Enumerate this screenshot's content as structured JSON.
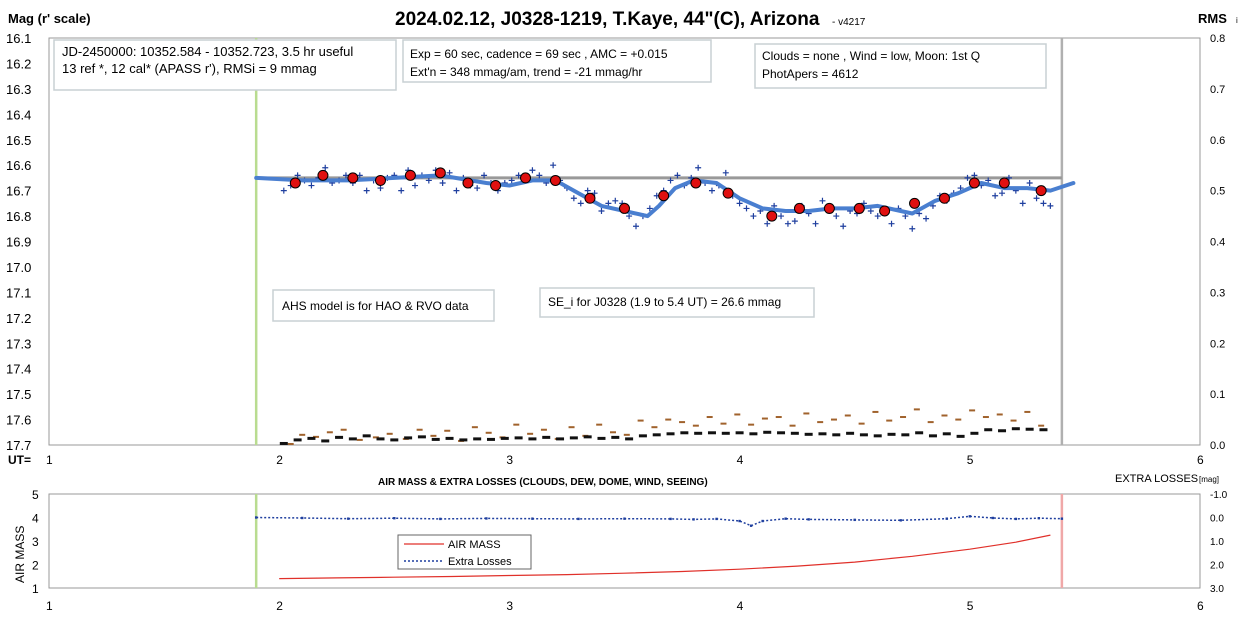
{
  "chart_data": [
    {
      "type": "scatter",
      "title": "2024.02.12, J0328-1219, T.Kaye, 44\"(C), Arizona",
      "version": "- v4217",
      "ylabel": "Mag (r' scale)",
      "y2label": "RMS",
      "y2label_sub": "i",
      "xlabel": "UT=",
      "xlim": [
        1,
        6
      ],
      "ylim": [
        16.1,
        17.7
      ],
      "y2lim": [
        0,
        0.8
      ],
      "x_ticks": [
        1,
        2,
        3,
        4,
        5,
        6
      ],
      "y_ticks": [
        "16.1",
        "16.2",
        "16.3",
        "16.4",
        "16.5",
        "16.6",
        "16.7",
        "16.8",
        "16.9",
        "17.0",
        "17.1",
        "17.2",
        "17.3",
        "17.4",
        "17.5",
        "17.6",
        "17.7"
      ],
      "y2_ticks": [
        "0.8",
        "0.7",
        "0.6",
        "0.5",
        "0.4",
        "0.3",
        "0.2",
        "0.1",
        "0.0"
      ],
      "annotations": {
        "box1": [
          "JD-2450000: 10352.584 - 10352.723, 3.5 hr useful",
          "13 ref *, 12 cal*  (APASS r'), RMSi = 9 mmag"
        ],
        "box2": [
          "Exp = 60 sec, cadence = 69 sec , AMC = +0.015",
          "Ext'n = 348 mmag/am, trend = -21 mmag/hr"
        ],
        "box3": [
          "Clouds = none , Wind = low,  Moon:  1st Q",
          "PhotApers = 4612"
        ],
        "box4": "AHS model is for HAO & RVO data",
        "box5": "SE_i for J0328 (1.9 to 5.4 UT) = 26.6 mmag"
      },
      "vertical_lines_ut": {
        "start": 1.9,
        "end": 5.4
      },
      "reference_line": {
        "x": [
          1.9,
          5.4
        ],
        "y": 16.65
      },
      "binned_points": {
        "x": [
          2.07,
          2.19,
          2.32,
          2.44,
          2.57,
          2.7,
          2.82,
          2.94,
          3.07,
          3.2,
          3.35,
          3.5,
          3.67,
          3.81,
          3.95,
          4.14,
          4.26,
          4.39,
          4.52,
          4.63,
          4.76,
          4.89,
          5.02,
          5.15,
          5.31
        ],
        "y": [
          16.67,
          16.64,
          16.65,
          16.66,
          16.64,
          16.63,
          16.67,
          16.68,
          16.65,
          16.66,
          16.73,
          16.77,
          16.72,
          16.67,
          16.71,
          16.8,
          16.77,
          16.77,
          16.77,
          16.78,
          16.75,
          16.73,
          16.67,
          16.67,
          16.7
        ]
      },
      "model_curve": {
        "x": [
          1.9,
          2.1,
          2.3,
          2.5,
          2.7,
          2.9,
          3.0,
          3.1,
          3.2,
          3.3,
          3.4,
          3.5,
          3.6,
          3.65,
          3.72,
          3.8,
          3.9,
          4.0,
          4.1,
          4.2,
          4.3,
          4.4,
          4.5,
          4.6,
          4.7,
          4.75,
          4.85,
          4.95,
          5.05,
          5.15,
          5.25,
          5.35,
          5.45
        ],
        "y": [
          16.65,
          16.66,
          16.66,
          16.65,
          16.64,
          16.67,
          16.68,
          16.66,
          16.66,
          16.71,
          16.76,
          16.78,
          16.8,
          16.76,
          16.69,
          16.66,
          16.67,
          16.73,
          16.77,
          16.78,
          16.78,
          16.77,
          16.77,
          16.76,
          16.78,
          16.79,
          16.74,
          16.71,
          16.67,
          16.69,
          16.69,
          16.7,
          16.67
        ]
      },
      "raw_points": {
        "x": [
          2.02,
          2.05,
          2.08,
          2.11,
          2.14,
          2.17,
          2.2,
          2.23,
          2.26,
          2.29,
          2.32,
          2.35,
          2.38,
          2.41,
          2.44,
          2.47,
          2.5,
          2.53,
          2.56,
          2.59,
          2.62,
          2.65,
          2.68,
          2.71,
          2.74,
          2.77,
          2.8,
          2.83,
          2.86,
          2.89,
          2.92,
          2.95,
          2.98,
          3.01,
          3.04,
          3.07,
          3.1,
          3.13,
          3.16,
          3.19,
          3.22,
          3.25,
          3.28,
          3.31,
          3.34,
          3.37,
          3.4,
          3.43,
          3.46,
          3.49,
          3.52,
          3.55,
          3.58,
          3.61,
          3.64,
          3.67,
          3.7,
          3.73,
          3.76,
          3.79,
          3.82,
          3.85,
          3.88,
          3.91,
          3.94,
          3.97,
          4.0,
          4.03,
          4.06,
          4.09,
          4.12,
          4.15,
          4.18,
          4.21,
          4.24,
          4.27,
          4.3,
          4.33,
          4.36,
          4.39,
          4.42,
          4.45,
          4.48,
          4.51,
          4.54,
          4.57,
          4.6,
          4.63,
          4.66,
          4.69,
          4.72,
          4.75,
          4.78,
          4.81,
          4.84,
          4.87,
          4.9,
          4.93,
          4.96,
          4.99,
          5.02,
          5.05,
          5.08,
          5.11,
          5.14,
          5.17,
          5.2,
          5.23,
          5.26,
          5.29,
          5.32,
          5.35
        ],
        "y": [
          16.7,
          16.68,
          16.64,
          16.66,
          16.68,
          16.65,
          16.61,
          16.67,
          16.66,
          16.64,
          16.67,
          16.64,
          16.7,
          16.66,
          16.69,
          16.65,
          16.64,
          16.7,
          16.62,
          16.68,
          16.64,
          16.66,
          16.62,
          16.67,
          16.63,
          16.7,
          16.65,
          16.68,
          16.69,
          16.64,
          16.67,
          16.7,
          16.67,
          16.66,
          16.64,
          16.66,
          16.62,
          16.64,
          16.67,
          16.6,
          16.66,
          16.69,
          16.73,
          16.75,
          16.7,
          16.71,
          16.78,
          16.75,
          16.74,
          16.75,
          16.8,
          16.84,
          16.8,
          16.77,
          16.72,
          16.7,
          16.66,
          16.64,
          16.68,
          16.65,
          16.61,
          16.67,
          16.7,
          16.68,
          16.63,
          16.72,
          16.75,
          16.77,
          16.8,
          16.78,
          16.83,
          16.76,
          16.8,
          16.83,
          16.82,
          16.76,
          16.79,
          16.83,
          16.74,
          16.78,
          16.8,
          16.84,
          16.78,
          16.79,
          16.75,
          16.78,
          16.8,
          16.79,
          16.83,
          16.77,
          16.8,
          16.85,
          16.79,
          16.81,
          16.76,
          16.72,
          16.74,
          16.71,
          16.69,
          16.65,
          16.64,
          16.68,
          16.66,
          16.72,
          16.71,
          16.65,
          16.7,
          16.75,
          16.67,
          16.73,
          16.75,
          16.76
        ]
      },
      "rms_points": {
        "x": [
          2.02,
          2.08,
          2.14,
          2.2,
          2.26,
          2.32,
          2.38,
          2.44,
          2.5,
          2.56,
          2.62,
          2.68,
          2.74,
          2.8,
          2.86,
          2.92,
          2.98,
          3.04,
          3.1,
          3.16,
          3.22,
          3.28,
          3.34,
          3.4,
          3.46,
          3.52,
          3.58,
          3.64,
          3.7,
          3.76,
          3.82,
          3.88,
          3.94,
          4.0,
          4.06,
          4.12,
          4.18,
          4.24,
          4.3,
          4.36,
          4.42,
          4.48,
          4.54,
          4.6,
          4.66,
          4.72,
          4.78,
          4.84,
          4.9,
          4.96,
          5.02,
          5.08,
          5.14,
          5.2,
          5.26,
          5.32
        ],
        "y": [
          0.003,
          0.01,
          0.013,
          0.008,
          0.015,
          0.012,
          0.018,
          0.012,
          0.01,
          0.014,
          0.016,
          0.011,
          0.013,
          0.01,
          0.012,
          0.011,
          0.013,
          0.014,
          0.012,
          0.015,
          0.012,
          0.014,
          0.016,
          0.013,
          0.015,
          0.012,
          0.018,
          0.02,
          0.022,
          0.024,
          0.023,
          0.024,
          0.023,
          0.024,
          0.022,
          0.025,
          0.024,
          0.023,
          0.021,
          0.022,
          0.02,
          0.023,
          0.02,
          0.018,
          0.021,
          0.02,
          0.024,
          0.018,
          0.022,
          0.017,
          0.023,
          0.03,
          0.028,
          0.032,
          0.031,
          0.03
        ]
      },
      "scatter_points": {
        "x": [
          2.05,
          2.1,
          2.16,
          2.22,
          2.28,
          2.35,
          2.42,
          2.48,
          2.55,
          2.61,
          2.67,
          2.73,
          2.79,
          2.85,
          2.91,
          2.97,
          3.03,
          3.09,
          3.15,
          3.21,
          3.27,
          3.33,
          3.39,
          3.45,
          3.51,
          3.57,
          3.63,
          3.69,
          3.75,
          3.81,
          3.87,
          3.93,
          3.99,
          4.05,
          4.11,
          4.17,
          4.23,
          4.29,
          4.35,
          4.41,
          4.47,
          4.53,
          4.59,
          4.65,
          4.71,
          4.77,
          4.83,
          4.89,
          4.95,
          5.01,
          5.07,
          5.13,
          5.19,
          5.25,
          5.31
        ],
        "y": [
          0.002,
          0.02,
          0.016,
          0.025,
          0.03,
          0.01,
          0.015,
          0.022,
          0.012,
          0.03,
          0.018,
          0.028,
          0.008,
          0.035,
          0.024,
          0.015,
          0.04,
          0.022,
          0.03,
          0.012,
          0.035,
          0.018,
          0.04,
          0.025,
          0.02,
          0.048,
          0.035,
          0.05,
          0.045,
          0.038,
          0.055,
          0.042,
          0.06,
          0.04,
          0.052,
          0.055,
          0.038,
          0.062,
          0.045,
          0.05,
          0.058,
          0.042,
          0.065,
          0.048,
          0.055,
          0.07,
          0.045,
          0.058,
          0.05,
          0.068,
          0.055,
          0.06,
          0.048,
          0.065,
          0.038
        ]
      }
    },
    {
      "type": "line",
      "title": "AIR MASS & EXTRA LOSSES (CLOUDS, DEW, DOME, WIND, SEEING)",
      "ylabel": "AIR MASS",
      "y2label": "EXTRA LOSSES",
      "y2label_unit": "[mag]",
      "xlim": [
        1,
        6
      ],
      "ylim": [
        1,
        5
      ],
      "y2lim": [
        -1.0,
        3.0
      ],
      "x_ticks": [
        1,
        2,
        3,
        4,
        5,
        6
      ],
      "y_ticks": [
        5,
        4,
        3,
        2,
        1
      ],
      "y2_ticks": [
        "-1.0",
        "0.0",
        "1.0",
        "2.0",
        "3.0"
      ],
      "legend": [
        "AIR MASS",
        "Extra Losses"
      ],
      "vertical_lines_ut": {
        "start": 1.9,
        "end": 5.4
      },
      "series": [
        {
          "name": "AIR MASS",
          "x": [
            2.0,
            2.25,
            2.5,
            2.75,
            3.0,
            3.25,
            3.5,
            3.75,
            4.0,
            4.25,
            4.5,
            4.75,
            5.0,
            5.2,
            5.35
          ],
          "y": [
            1.4,
            1.43,
            1.46,
            1.49,
            1.53,
            1.57,
            1.63,
            1.7,
            1.8,
            1.93,
            2.1,
            2.35,
            2.65,
            2.95,
            3.25
          ]
        },
        {
          "name": "Extra Losses",
          "x": [
            1.9,
            2.1,
            2.3,
            2.5,
            2.7,
            2.9,
            3.1,
            3.3,
            3.5,
            3.7,
            3.8,
            3.9,
            4.0,
            4.05,
            4.1,
            4.2,
            4.3,
            4.5,
            4.7,
            4.9,
            5.0,
            5.1,
            5.2,
            5.3,
            5.4
          ],
          "y": [
            0.0,
            0.02,
            0.05,
            0.03,
            0.06,
            0.04,
            0.05,
            0.06,
            0.05,
            0.06,
            0.08,
            0.06,
            0.15,
            0.35,
            0.15,
            0.05,
            0.08,
            0.1,
            0.12,
            0.05,
            -0.05,
            0.02,
            0.06,
            0.03,
            0.05
          ]
        }
      ]
    }
  ]
}
